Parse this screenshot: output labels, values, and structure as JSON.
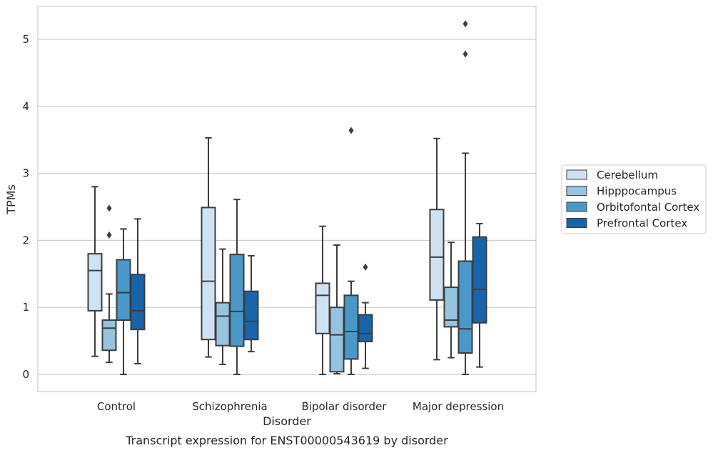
{
  "chart_data": {
    "type": "box",
    "title": "Transcript expression for ENST00000543619 by disorder",
    "xlabel": "Disorder",
    "ylabel": "TPMs",
    "categories": [
      "Control",
      "Schizophrenia",
      "Bipolar disorder",
      "Major depression"
    ],
    "ylim": [
      -0.25,
      5.5
    ],
    "yticks": [
      0,
      1,
      2,
      3,
      4,
      5
    ],
    "grid": true,
    "legend_position": "right",
    "series": [
      {
        "name": "Cerebellum",
        "color": "#d0e1f2",
        "boxes": [
          {
            "min": 0.27,
            "q1": 0.95,
            "median": 1.55,
            "q3": 1.8,
            "max": 2.8,
            "outliers": []
          },
          {
            "min": 0.26,
            "q1": 0.52,
            "median": 1.39,
            "q3": 2.49,
            "max": 3.53,
            "outliers": []
          },
          {
            "min": 0.0,
            "q1": 0.61,
            "median": 1.18,
            "q3": 1.36,
            "max": 2.21,
            "outliers": []
          },
          {
            "min": 0.22,
            "q1": 1.11,
            "median": 1.75,
            "q3": 2.46,
            "max": 3.52,
            "outliers": []
          }
        ]
      },
      {
        "name": "Hipppocampus",
        "color": "#94c4df",
        "boxes": [
          {
            "min": 0.18,
            "q1": 0.36,
            "median": 0.69,
            "q3": 0.81,
            "max": 1.2,
            "outliers": [
              2.08,
              2.48
            ]
          },
          {
            "min": 0.15,
            "q1": 0.43,
            "median": 0.87,
            "q3": 1.07,
            "max": 1.87,
            "outliers": []
          },
          {
            "min": 0.01,
            "q1": 0.04,
            "median": 0.59,
            "q3": 1.0,
            "max": 1.93,
            "outliers": []
          },
          {
            "min": 0.25,
            "q1": 0.71,
            "median": 0.81,
            "q3": 1.3,
            "max": 1.97,
            "outliers": []
          }
        ]
      },
      {
        "name": "Orbitofontal Cortex",
        "color": "#4a98c9",
        "boxes": [
          {
            "min": 0.0,
            "q1": 0.81,
            "median": 1.22,
            "q3": 1.71,
            "max": 2.17,
            "outliers": []
          },
          {
            "min": 0.0,
            "q1": 0.42,
            "median": 0.94,
            "q3": 1.79,
            "max": 2.61,
            "outliers": []
          },
          {
            "min": 0.0,
            "q1": 0.23,
            "median": 0.64,
            "q3": 1.18,
            "max": 1.39,
            "outliers": [
              3.64
            ]
          },
          {
            "min": 0.0,
            "q1": 0.32,
            "median": 0.68,
            "q3": 1.69,
            "max": 3.3,
            "outliers": [
              4.78,
              5.23
            ]
          }
        ]
      },
      {
        "name": "Prefrontal Cortex",
        "color": "#1764ab",
        "boxes": [
          {
            "min": 0.16,
            "q1": 0.67,
            "median": 0.95,
            "q3": 1.49,
            "max": 2.32,
            "outliers": []
          },
          {
            "min": 0.34,
            "q1": 0.52,
            "median": 0.79,
            "q3": 1.24,
            "max": 1.77,
            "outliers": []
          },
          {
            "min": 0.09,
            "q1": 0.49,
            "median": 0.61,
            "q3": 0.89,
            "max": 1.07,
            "outliers": [
              1.6
            ]
          },
          {
            "min": 0.11,
            "q1": 0.77,
            "median": 1.27,
            "q3": 2.05,
            "max": 2.25,
            "outliers": []
          }
        ]
      }
    ]
  }
}
